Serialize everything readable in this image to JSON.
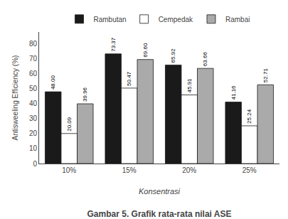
{
  "chart_data": {
    "type": "bar",
    "title": "Gambar 5. Grafik rata-rata nilai ASE",
    "xlabel": "Konsentrasi",
    "ylabel": "Antisweeling Efficiency (%)",
    "categories": [
      "10%",
      "15%",
      "20%",
      "25%"
    ],
    "series": [
      {
        "name": "Rambutan",
        "color": "#1a1a1a",
        "values": [
          48.0,
          73.37,
          65.92,
          41.16
        ],
        "value_labels": [
          "48.00",
          "73.37",
          "65.92",
          "41.16"
        ]
      },
      {
        "name": "Cempedak",
        "color": "#ffffff",
        "values": [
          20.09,
          50.47,
          45.91,
          25.24
        ],
        "value_labels": [
          "20.09",
          "50.47",
          "45.91",
          "25.24"
        ]
      },
      {
        "name": "Rambai",
        "color": "#aaaaaa",
        "values": [
          39.96,
          69.6,
          63.66,
          52.71
        ],
        "value_labels": [
          "39.96",
          "69.60",
          "63.66",
          "52.71"
        ]
      }
    ],
    "ylim": [
      0,
      88
    ],
    "yticks": [
      0,
      10,
      20,
      30,
      40,
      50,
      60,
      70,
      80
    ],
    "grid": false,
    "legend": "top",
    "data_labels": true
  }
}
